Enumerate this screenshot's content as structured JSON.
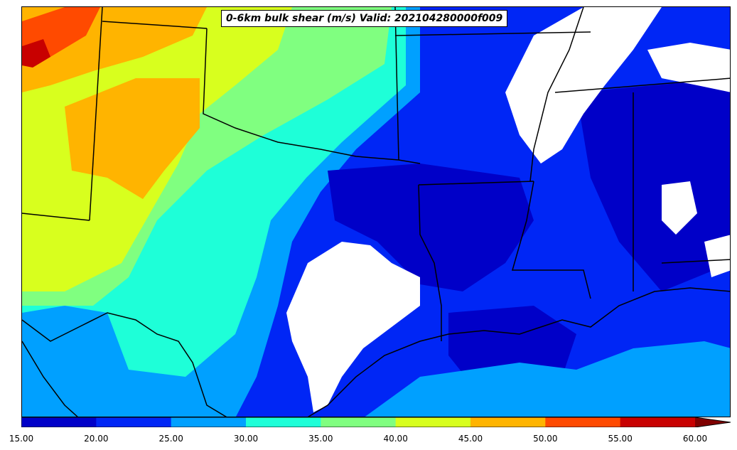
{
  "map": {
    "title": "0-6km bulk shear (m/s) Valid: 202104280000f009",
    "colors": {
      "missing": "#ffffff",
      "borders": "#000000"
    }
  },
  "colorbar": {
    "levels": [
      15,
      20,
      25,
      30,
      35,
      40,
      45,
      50,
      55,
      60
    ],
    "tick_labels": [
      "15.00",
      "20.00",
      "25.00",
      "30.00",
      "35.00",
      "40.00",
      "45.00",
      "50.00",
      "55.00",
      "60.00"
    ],
    "colors": [
      "#0000c8",
      "#0026f5",
      "#00a0ff",
      "#1effd8",
      "#80ff80",
      "#d8ff1e",
      "#ffb400",
      "#ff4a00",
      "#c80000",
      "#7f0000"
    ],
    "extend": "max"
  }
}
